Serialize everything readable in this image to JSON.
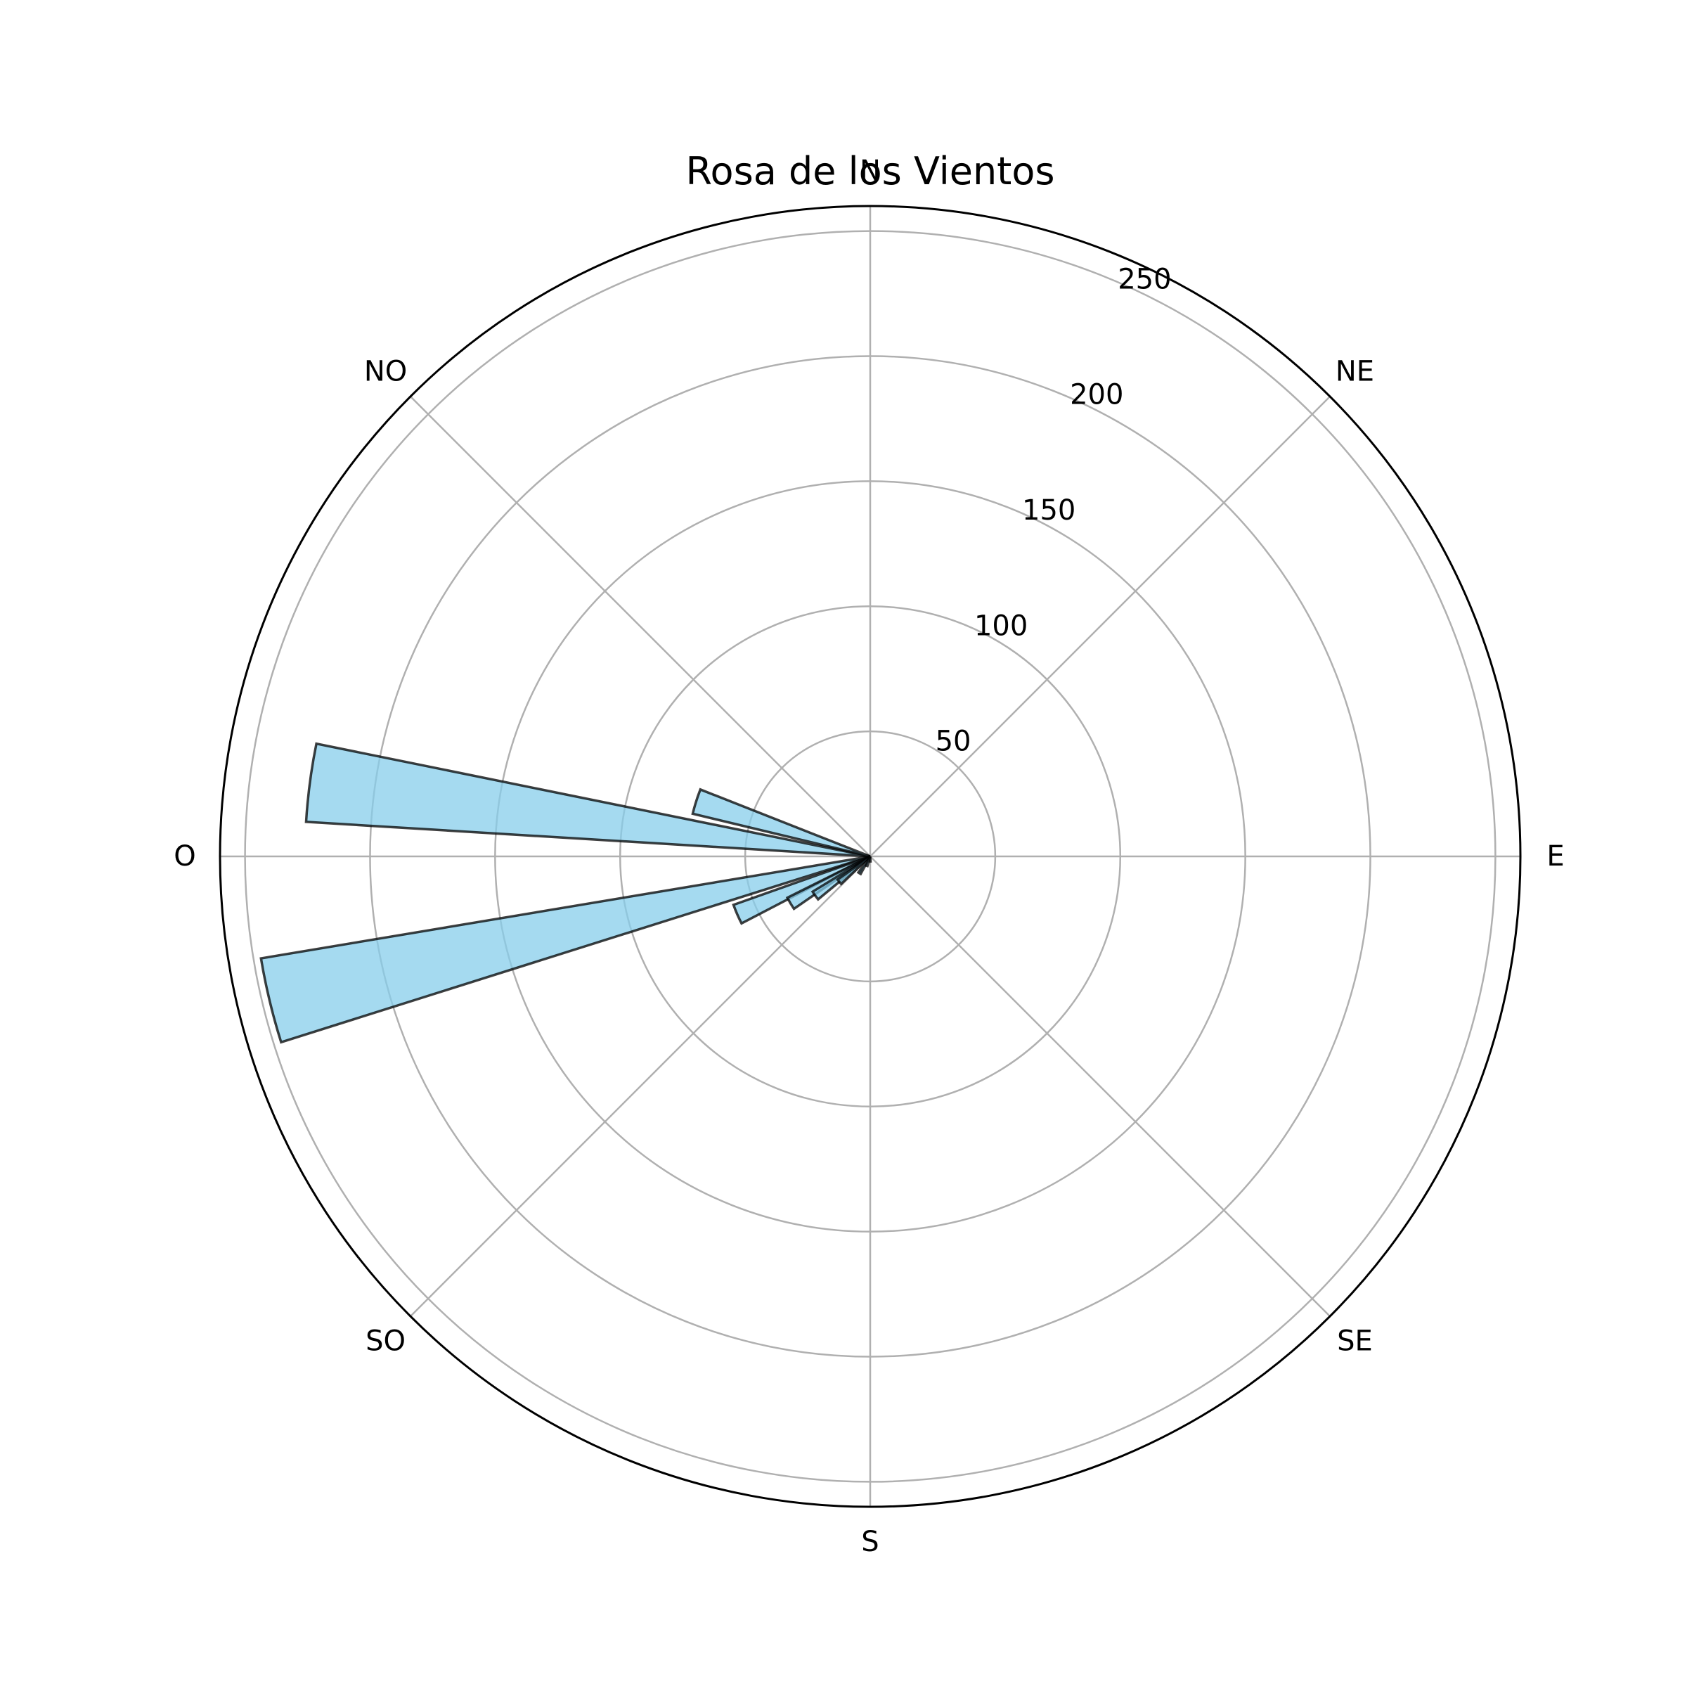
{
  "chart_data": {
    "type": "bar",
    "subtype": "polar-wind-rose",
    "title": "Rosa de los Vientos",
    "direction_labels": [
      "N",
      "NE",
      "E",
      "SE",
      "S",
      "SO",
      "O",
      "NO"
    ],
    "direction_angles_deg": [
      0,
      45,
      90,
      135,
      180,
      225,
      270,
      315
    ],
    "radial_ticks": [
      50,
      100,
      150,
      200,
      250
    ],
    "radial_max": 260,
    "grid": true,
    "bar_color": "#87CEEB",
    "bar_edge_color": "#000000",
    "bars": [
      {
        "angle_deg": 256.5,
        "value": 247
      },
      {
        "angle_deg": 277.5,
        "value": 226
      },
      {
        "angle_deg": 287.5,
        "value": 73
      },
      {
        "angle_deg": 246.5,
        "value": 58
      },
      {
        "angle_deg": 239.5,
        "value": 37
      },
      {
        "angle_deg": 234.5,
        "value": 27
      },
      {
        "angle_deg": 230.5,
        "value": 16
      },
      {
        "angle_deg": 212.5,
        "value": 8
      },
      {
        "angle_deg": 200.0,
        "value": 4
      },
      {
        "angle_deg": 180.0,
        "value": 2
      }
    ]
  }
}
